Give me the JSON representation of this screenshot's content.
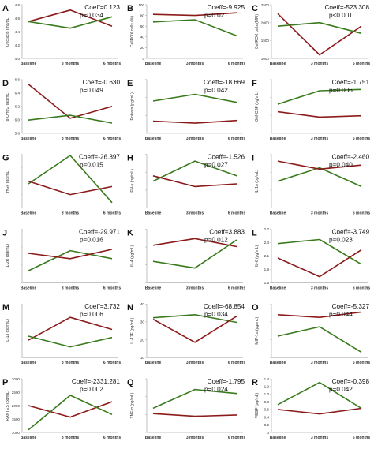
{
  "colors": {
    "red": "#8b1a1a",
    "green": "#3a7a1e",
    "axis": "#b0b0b0",
    "text": "#333333",
    "letter": "#111111"
  },
  "categories": [
    "Baseline",
    "3 months",
    "6 months"
  ],
  "chart_data": [
    {
      "type": "line",
      "letter": "A",
      "ylabel": "Uric acid (mg/dL)",
      "coeff": "Coeff=0.123",
      "p": "p=0.034",
      "yticks": [
        "4.0",
        "4.2",
        "4.4",
        "4.6",
        "4.8"
      ],
      "ylim": [
        4.0,
        4.8
      ],
      "series": [
        {
          "color": "red",
          "values": [
            4.55,
            4.72,
            4.48
          ]
        },
        {
          "color": "green",
          "values": [
            4.55,
            4.45,
            4.62
          ]
        }
      ]
    },
    {
      "type": "line",
      "letter": "B",
      "ylabel": "CellROX cells (%)",
      "coeff": "Coeff=-9.925",
      "p": "p=0.021",
      "yticks": [
        "0",
        "20",
        "40",
        "60",
        "80",
        "100"
      ],
      "ylim": [
        0,
        100
      ],
      "series": [
        {
          "color": "red",
          "values": [
            82,
            80,
            85
          ]
        },
        {
          "color": "green",
          "values": [
            68,
            72,
            42
          ]
        }
      ]
    },
    {
      "type": "line",
      "letter": "C",
      "ylabel": "CellROX cells (MFI)",
      "coeff": "Coeff=-523.308",
      "p": "p<0.001",
      "yticks": [
        "1000",
        "1500",
        "2000",
        "2500"
      ],
      "ylim": [
        1000,
        2500
      ],
      "series": [
        {
          "color": "red",
          "values": [
            2250,
            1100,
            1900
          ]
        },
        {
          "color": "green",
          "values": [
            1900,
            2000,
            1700
          ]
        }
      ]
    },
    {
      "type": "line",
      "letter": "D",
      "ylabel": "8-OHdG (ng/mL)",
      "coeff": "Coeff=-0.630",
      "p": "p=0.049",
      "yticks": [
        "5.8",
        "6.0",
        "6.2",
        "6.4",
        "6.6"
      ],
      "ylim": [
        5.8,
        6.7
      ],
      "series": [
        {
          "color": "red",
          "values": [
            6.62,
            6.05,
            6.25
          ]
        },
        {
          "color": "green",
          "values": [
            6.02,
            6.1,
            5.97
          ]
        }
      ]
    },
    {
      "type": "line",
      "letter": "E",
      "ylabel": "Eotaxin (pg/mL)",
      "coeff": "Coeff=-18.669",
      "p": "p=0.042",
      "yticks": [
        "",
        "",
        "",
        ""
      ],
      "ylim": [
        0,
        4
      ],
      "series": [
        {
          "color": "green",
          "values": [
            2.4,
            2.9,
            2.3
          ]
        },
        {
          "color": "red",
          "values": [
            0.9,
            0.75,
            0.95
          ]
        }
      ]
    },
    {
      "type": "line",
      "letter": "F",
      "ylabel": "GM-CSF (pg/mL)",
      "coeff": "Coeff=-1.751",
      "p": "p=0.006",
      "yticks": [
        "",
        "",
        "",
        ""
      ],
      "ylim": [
        0,
        12
      ],
      "series": [
        {
          "color": "green",
          "values": [
            6.5,
            9.5,
            9.8
          ]
        },
        {
          "color": "red",
          "values": [
            4.8,
            3.6,
            3.9
          ]
        }
      ]
    },
    {
      "type": "line",
      "letter": "G",
      "ylabel": "HGF (pg/mL)",
      "coeff": "Coeff=-26.397",
      "p": "p=0.015",
      "yticks": [
        "",
        "",
        "",
        "",
        ""
      ],
      "ylim": [
        0,
        100
      ],
      "series": [
        {
          "color": "green",
          "values": [
            45,
            98,
            10
          ]
        },
        {
          "color": "red",
          "values": [
            50,
            25,
            40
          ]
        }
      ]
    },
    {
      "type": "line",
      "letter": "H",
      "ylabel": "IFN-γ (pg/mL)",
      "coeff": "Coeff=-1.526",
      "p": "p=0.027",
      "yticks": [
        "",
        "",
        "",
        ""
      ],
      "ylim": [
        0,
        4
      ],
      "series": [
        {
          "color": "green",
          "values": [
            2.0,
            3.5,
            2.4
          ]
        },
        {
          "color": "red",
          "values": [
            2.4,
            1.6,
            1.8
          ]
        }
      ]
    },
    {
      "type": "line",
      "letter": "I",
      "ylabel": "IL-1α (pg/mL)",
      "coeff": "Coeff=-2.460",
      "p": "p=0.040",
      "yticks": [
        "",
        "",
        "",
        ""
      ],
      "ylim": [
        0,
        4
      ],
      "series": [
        {
          "color": "green",
          "values": [
            2.0,
            3.0,
            1.6
          ]
        },
        {
          "color": "red",
          "values": [
            3.5,
            2.9,
            3.2
          ]
        }
      ]
    },
    {
      "type": "line",
      "letter": "J",
      "ylabel": "IL-2R (pg/mL)",
      "coeff": "Coeff=-29.971",
      "p": "p=0.016",
      "yticks": [
        "",
        "",
        "",
        ""
      ],
      "ylim": [
        0,
        4
      ],
      "series": [
        {
          "color": "green",
          "values": [
            0.9,
            2.4,
            1.8
          ]
        },
        {
          "color": "red",
          "values": [
            2.2,
            1.8,
            2.5
          ]
        }
      ]
    },
    {
      "type": "line",
      "letter": "K",
      "ylabel": "IL-4 (pg/mL)",
      "coeff": "Coeff=3.883",
      "p": "p=0.012",
      "yticks": [
        "",
        "",
        "",
        ""
      ],
      "ylim": [
        0,
        4
      ],
      "series": [
        {
          "color": "red",
          "values": [
            2.8,
            3.3,
            2.7
          ]
        },
        {
          "color": "green",
          "values": [
            1.6,
            1.1,
            3.2
          ]
        }
      ]
    },
    {
      "type": "line",
      "letter": "L",
      "ylabel": "IL-6 (pg/mL)",
      "coeff": "Coeff=-3.749",
      "p": "p=0.023",
      "yticks": [
        "1.5",
        "1.8",
        "2.1",
        "2.4",
        "2.7"
      ],
      "ylim": [
        1.5,
        2.8
      ],
      "series": [
        {
          "color": "green",
          "values": [
            2.45,
            2.55,
            1.95
          ]
        },
        {
          "color": "red",
          "values": [
            2.1,
            1.65,
            2.3
          ]
        }
      ]
    },
    {
      "type": "line",
      "letter": "M",
      "ylabel": "IL-13 (pg/mL)",
      "coeff": "Coeff=3.732",
      "p": "p=0.006",
      "yticks": [
        "",
        "",
        "",
        ""
      ],
      "ylim": [
        0,
        4
      ],
      "series": [
        {
          "color": "red",
          "values": [
            1.3,
            3.0,
            2.1
          ]
        },
        {
          "color": "green",
          "values": [
            1.6,
            0.8,
            1.5
          ]
        }
      ]
    },
    {
      "type": "line",
      "letter": "N",
      "ylabel": "IL-17F (pg/mL)",
      "coeff": "Coeff=-68.854",
      "p": "p=0.034",
      "yticks": [
        "10",
        "20",
        "30",
        "40"
      ],
      "ylim": [
        10,
        45
      ],
      "series": [
        {
          "color": "green",
          "values": [
            36,
            38,
            33
          ]
        },
        {
          "color": "red",
          "values": [
            35,
            20,
            37
          ]
        }
      ]
    },
    {
      "type": "line",
      "letter": "O",
      "ylabel": "MIP-1α (pg/mL)",
      "coeff": "Coeff=-5.327",
      "p": "p=0.044",
      "yticks": [
        "",
        "",
        "",
        ""
      ],
      "ylim": [
        0,
        4
      ],
      "series": [
        {
          "color": "red",
          "values": [
            3.2,
            3.0,
            3.4
          ]
        },
        {
          "color": "green",
          "values": [
            1.6,
            2.3,
            0.4
          ]
        }
      ]
    },
    {
      "type": "line",
      "letter": "P",
      "ylabel": "RANTES (pg/mL)",
      "coeff": "Coeff=-2331.281",
      "p": "p=0.002",
      "yticks": [
        "1000",
        "1500",
        "2000",
        "2500",
        "3000"
      ],
      "ylim": [
        1000,
        3100
      ],
      "series": [
        {
          "color": "red",
          "values": [
            2050,
            1600,
            2200
          ]
        },
        {
          "color": "green",
          "values": [
            1100,
            2450,
            1700
          ]
        }
      ]
    },
    {
      "type": "line",
      "letter": "Q",
      "ylabel": "TNF-α (pg/mL)",
      "coeff": "Coeff=-1.795",
      "p": "p=0.024",
      "yticks": [
        "",
        "",
        "",
        ""
      ],
      "ylim": [
        0,
        4
      ],
      "series": [
        {
          "color": "green",
          "values": [
            1.8,
            3.2,
            2.9
          ]
        },
        {
          "color": "red",
          "values": [
            1.4,
            1.2,
            1.3
          ]
        }
      ]
    },
    {
      "type": "line",
      "letter": "R",
      "ylabel": "VEGF (pg/mL)",
      "coeff": "Coeff=-0.398",
      "p": "p=0.042",
      "yticks": [
        "0",
        "0.2",
        "0.4",
        "0.6",
        "0.8",
        "1.0",
        "1.2",
        "1.4"
      ],
      "ylim": [
        0,
        1.45
      ],
      "series": [
        {
          "color": "green",
          "values": [
            0.75,
            1.35,
            0.65
          ]
        },
        {
          "color": "red",
          "values": [
            0.62,
            0.5,
            0.65
          ]
        }
      ]
    }
  ]
}
